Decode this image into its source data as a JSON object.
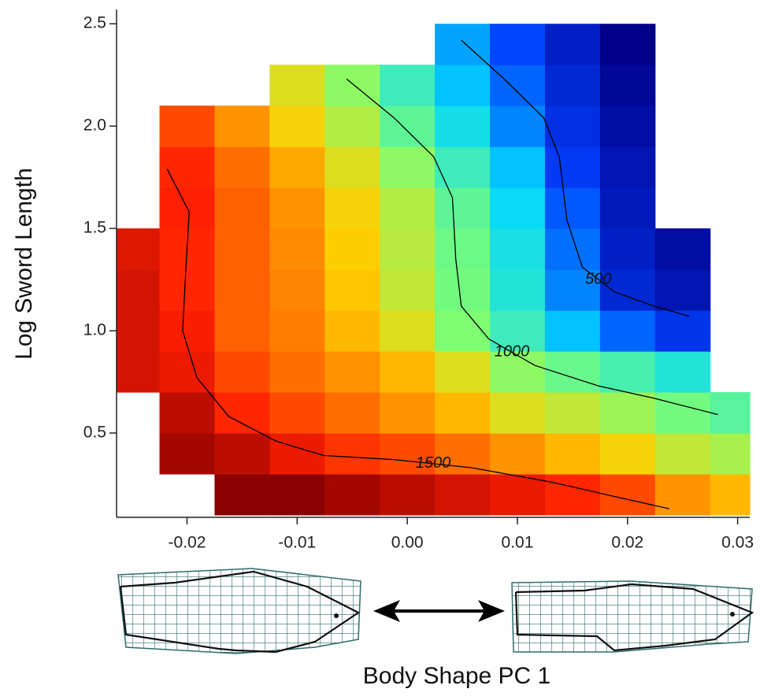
{
  "chart_data": {
    "type": "heatmap",
    "x_label": "Body Shape PC 1",
    "y_label": "Log Sword Length",
    "x": [
      -0.025,
      -0.02,
      -0.015,
      -0.01,
      -0.005,
      0,
      0.005,
      0.01,
      0.015,
      0.02,
      0.025,
      0.03
    ],
    "y": [
      0.2,
      0.4,
      0.6,
      0.8,
      1.0,
      1.2,
      1.4,
      1.6,
      1.8,
      2.0,
      2.2,
      2.4
    ],
    "z": [
      [
        null,
        null,
        1750,
        1750,
        1700,
        1650,
        1600,
        1550,
        1500,
        1450,
        1350,
        1300
      ],
      [
        null,
        1700,
        1650,
        1550,
        1480,
        1450,
        1400,
        1350,
        1300,
        1250,
        1150,
        1100
      ],
      [
        null,
        1650,
        1500,
        1450,
        1400,
        1350,
        1300,
        1200,
        1150,
        1080,
        1000,
        950
      ],
      [
        1600,
        1550,
        1450,
        1400,
        1350,
        1300,
        1200,
        1050,
        980,
        920,
        850,
        null
      ],
      [
        1600,
        1520,
        1420,
        1380,
        1300,
        1200,
        1020,
        900,
        750,
        600,
        500,
        null
      ],
      [
        1600,
        1500,
        1420,
        1370,
        1280,
        1150,
        1000,
        850,
        650,
        450,
        380,
        null
      ],
      [
        1580,
        1500,
        1420,
        1360,
        1270,
        1130,
        990,
        830,
        620,
        420,
        350,
        null
      ],
      [
        null,
        1510,
        1420,
        1350,
        1250,
        1120,
        960,
        800,
        580,
        400,
        null,
        null
      ],
      [
        null,
        1500,
        1400,
        1320,
        1200,
        1050,
        900,
        750,
        520,
        380,
        null,
        null
      ],
      [
        null,
        1450,
        1350,
        1250,
        1120,
        960,
        820,
        650,
        480,
        350,
        null,
        null
      ],
      [
        null,
        null,
        null,
        1200,
        1050,
        900,
        750,
        600,
        450,
        330,
        null,
        null
      ],
      [
        null,
        null,
        null,
        null,
        null,
        null,
        700,
        550,
        420,
        300,
        null,
        null
      ]
    ],
    "colormap": [
      "#00008b",
      "#0040ff",
      "#00d8ff",
      "#80ff70",
      "#ffd000",
      "#ff2000",
      "#8b0000"
    ],
    "contours": [
      {
        "level": 500,
        "color": "#000000",
        "x": [
          0.0049,
          0.0088,
          0.0124,
          0.0138,
          0.0145,
          0.0159,
          0.0188,
          0.0224,
          0.0256
        ],
        "y": [
          2.42,
          2.23,
          2.04,
          1.85,
          1.54,
          1.31,
          1.19,
          1.12,
          1.07
        ]
      },
      {
        "level": 1000,
        "color": "#000000",
        "x": [
          -0.0055,
          -0.0012,
          0.0024,
          0.0041,
          0.0044,
          0.0049,
          0.0074,
          0.0116,
          0.0174,
          0.0224,
          0.0282
        ],
        "y": [
          2.23,
          2.04,
          1.85,
          1.65,
          1.35,
          1.12,
          0.96,
          0.83,
          0.73,
          0.67,
          0.59
        ]
      },
      {
        "level": 1500,
        "color": "#000000",
        "x": [
          -0.0218,
          -0.0198,
          -0.0201,
          -0.0204,
          -0.0191,
          -0.0162,
          -0.0119,
          -0.0076,
          -0.0012,
          0.0059,
          0.0131,
          0.0188,
          0.0238
        ],
        "y": [
          1.79,
          1.58,
          1.31,
          1.0,
          0.77,
          0.58,
          0.46,
          0.39,
          0.37,
          0.33,
          0.26,
          0.19,
          0.13
        ]
      }
    ],
    "xlim": [
      -0.0264,
      0.0311
    ],
    "ylim": [
      0.088,
      2.57
    ],
    "xticks": [
      -0.02,
      -0.01,
      {
        "value": 0,
        "label": "0.00"
      },
      0.01,
      0.02,
      0.03
    ],
    "yticks": [
      0.5,
      {
        "value": 1,
        "label": "1.0"
      },
      1.5,
      {
        "value": 2,
        "label": "2.0"
      },
      2.5
    ]
  }
}
